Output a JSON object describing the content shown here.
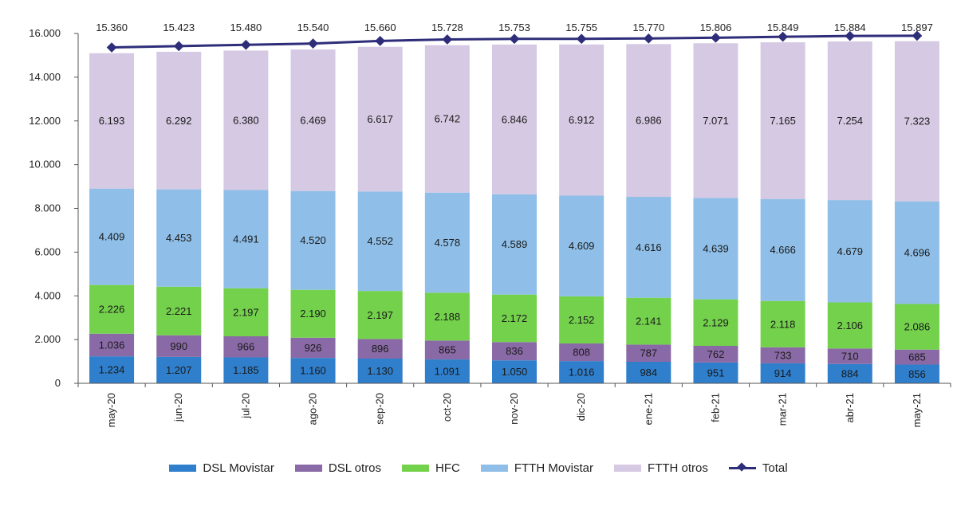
{
  "chart_data": {
    "type": "bar",
    "stacked": true,
    "title": "",
    "xlabel": "",
    "ylabel": "",
    "ylim": [
      0,
      16000
    ],
    "yticks": [
      "0",
      "2.000",
      "4.000",
      "6.000",
      "8.000",
      "10.000",
      "12.000",
      "14.000",
      "16.000"
    ],
    "ytick_values": [
      0,
      2000,
      4000,
      6000,
      8000,
      10000,
      12000,
      14000,
      16000
    ],
    "categories": [
      "may-20",
      "jun-20",
      "jul-20",
      "ago-20",
      "sep-20",
      "oct-20",
      "nov-20",
      "dic-20",
      "ene-21",
      "feb-21",
      "mar-21",
      "abr-21",
      "may-21"
    ],
    "series": [
      {
        "name": "DSL Movistar",
        "color": "#2f7fcc",
        "values": [
          1234,
          1207,
          1185,
          1160,
          1130,
          1091,
          1050,
          1016,
          984,
          951,
          914,
          884,
          856
        ],
        "labels": [
          "1.234",
          "1.207",
          "1.185",
          "1.160",
          "1.130",
          "1.091",
          "1.050",
          "1.016",
          "984",
          "951",
          "914",
          "884",
          "856"
        ]
      },
      {
        "name": "DSL otros",
        "color": "#8a6aa6",
        "values": [
          1036,
          990,
          966,
          926,
          896,
          865,
          836,
          808,
          787,
          762,
          733,
          710,
          685
        ],
        "labels": [
          "1.036",
          "990",
          "966",
          "926",
          "896",
          "865",
          "836",
          "808",
          "787",
          "762",
          "733",
          "710",
          "685"
        ]
      },
      {
        "name": "HFC",
        "color": "#74d14c",
        "values": [
          2226,
          2221,
          2197,
          2190,
          2197,
          2188,
          2172,
          2152,
          2141,
          2129,
          2118,
          2106,
          2086
        ],
        "labels": [
          "2.226",
          "2.221",
          "2.197",
          "2.190",
          "2.197",
          "2.188",
          "2.172",
          "2.152",
          "2.141",
          "2.129",
          "2.118",
          "2.106",
          "2.086"
        ]
      },
      {
        "name": "FTTH Movistar",
        "color": "#8fbfe8",
        "values": [
          4409,
          4453,
          4491,
          4520,
          4552,
          4578,
          4589,
          4609,
          4616,
          4639,
          4666,
          4679,
          4696
        ],
        "labels": [
          "4.409",
          "4.453",
          "4.491",
          "4.520",
          "4.552",
          "4.578",
          "4.589",
          "4.609",
          "4.616",
          "4.639",
          "4.666",
          "4.679",
          "4.696"
        ]
      },
      {
        "name": "FTTH otros",
        "color": "#d6c9e3",
        "values": [
          6193,
          6292,
          6380,
          6469,
          6617,
          6742,
          6846,
          6912,
          6986,
          7071,
          7165,
          7254,
          7323
        ],
        "labels": [
          "6.193",
          "6.292",
          "6.380",
          "6.469",
          "6.617",
          "6.742",
          "6.846",
          "6.912",
          "6.986",
          "7.071",
          "7.165",
          "7.254",
          "7.323"
        ]
      }
    ],
    "line": {
      "name": "Total",
      "color": "#2e2d7a",
      "values": [
        15360,
        15423,
        15480,
        15540,
        15660,
        15728,
        15753,
        15755,
        15770,
        15806,
        15849,
        15884,
        15897
      ],
      "labels": [
        "15.360",
        "15.423",
        "15.480",
        "15.540",
        "15.660",
        "15.728",
        "15.753",
        "15.755",
        "15.770",
        "15.806",
        "15.849",
        "15.884",
        "15.897"
      ]
    },
    "legend_position": "bottom"
  },
  "legend": {
    "dsl_movistar": "DSL Movistar",
    "dsl_otros": "DSL otros",
    "hfc": "HFC",
    "ftth_movistar": "FTTH Movistar",
    "ftth_otros": "FTTH otros",
    "total": "Total",
    "colors": {
      "dsl_movistar": "#2f7fcc",
      "dsl_otros": "#8a6aa6",
      "hfc": "#74d14c",
      "ftth_movistar": "#8fbfe8",
      "ftth_otros": "#d6c9e3"
    }
  }
}
